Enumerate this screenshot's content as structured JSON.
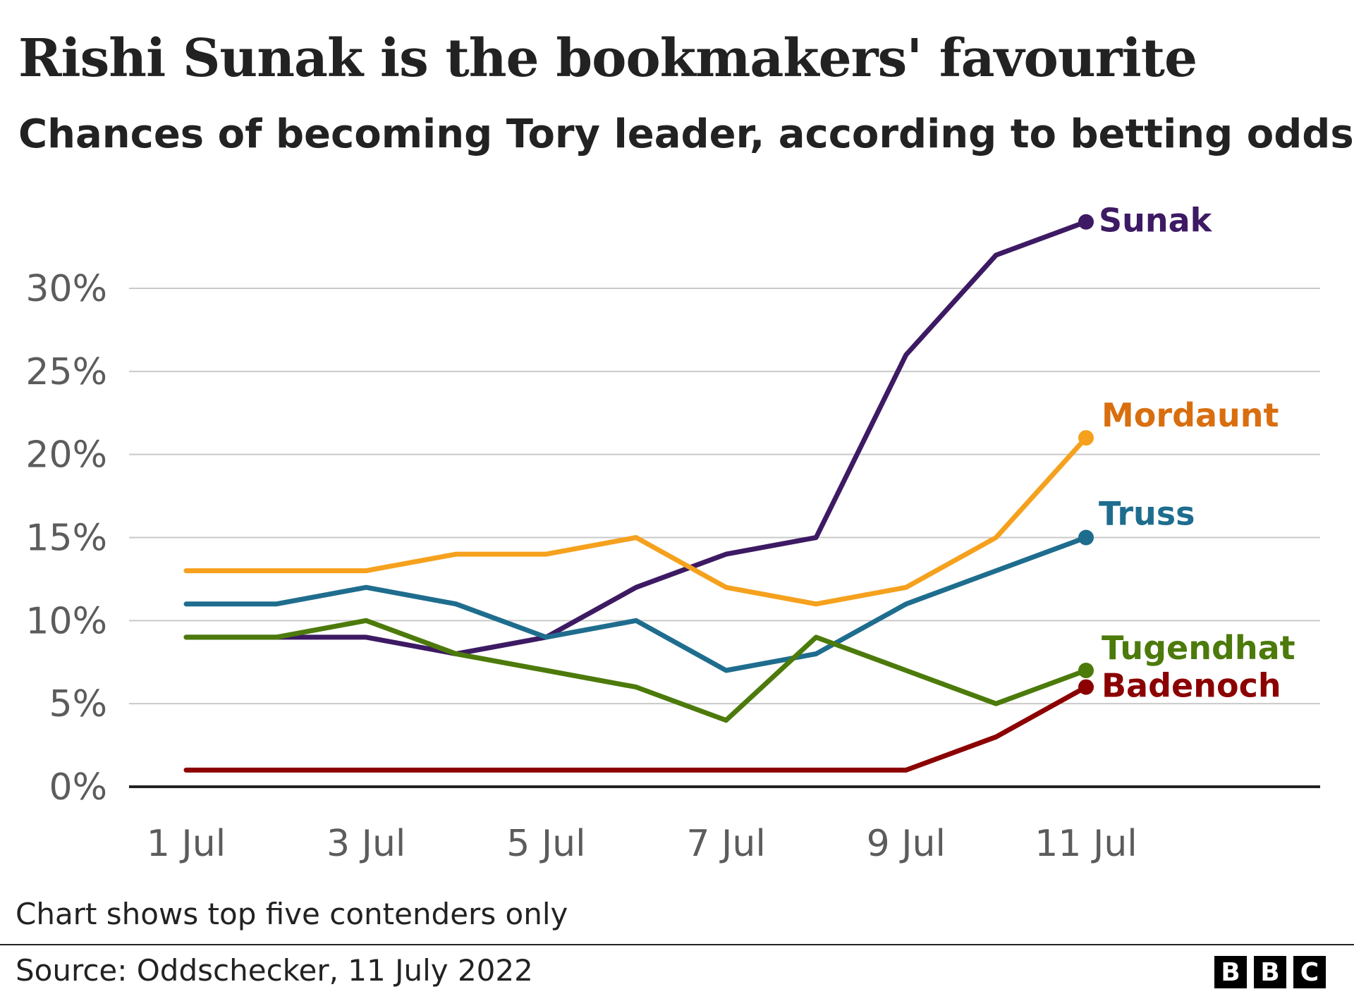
{
  "title": "Rishi Sunak is the bookmakers' favourite",
  "subtitle": "Chances of becoming Tory leader, according to betting odds",
  "note": "Chart shows top five contenders only",
  "source": "Source: Oddschecker, 11 July 2022",
  "brand": [
    "B",
    "B",
    "C"
  ],
  "chart_data": {
    "type": "line",
    "x": [
      "1 Jul",
      "2 Jul",
      "3 Jul",
      "4 Jul",
      "5 Jul",
      "6 Jul",
      "7 Jul",
      "8 Jul",
      "9 Jul",
      "10 Jul",
      "11 Jul"
    ],
    "x_tick_labels": [
      "1 Jul",
      "3 Jul",
      "5 Jul",
      "7 Jul",
      "9 Jul",
      "11 Jul"
    ],
    "y_tick_labels": [
      "0%",
      "5%",
      "10%",
      "15%",
      "20%",
      "25%",
      "30%"
    ],
    "ylim": [
      0,
      30
    ],
    "grid": true,
    "legend": "direct labels at line ends",
    "series": [
      {
        "name": "Sunak",
        "color": "#3d1a63",
        "values": [
          9,
          9,
          9,
          8,
          9,
          12,
          14,
          15,
          26,
          32,
          34
        ]
      },
      {
        "name": "Mordaunt",
        "color": "#f5a11e",
        "label_color": "#d96e0f",
        "values": [
          13,
          13,
          13,
          14,
          14,
          15,
          12,
          11,
          12,
          15,
          21
        ]
      },
      {
        "name": "Truss",
        "color": "#1f6d8e",
        "values": [
          11,
          11,
          12,
          11,
          9,
          10,
          7,
          8,
          11,
          13,
          15
        ]
      },
      {
        "name": "Tugendhat",
        "color": "#4c7a0b",
        "values": [
          9,
          9,
          10,
          8,
          7,
          6,
          4,
          9,
          7,
          5,
          7
        ]
      },
      {
        "name": "Badenoch",
        "color": "#8b0000",
        "values": [
          1,
          1,
          1,
          1,
          1,
          1,
          1,
          1,
          1,
          3,
          6
        ]
      }
    ]
  }
}
